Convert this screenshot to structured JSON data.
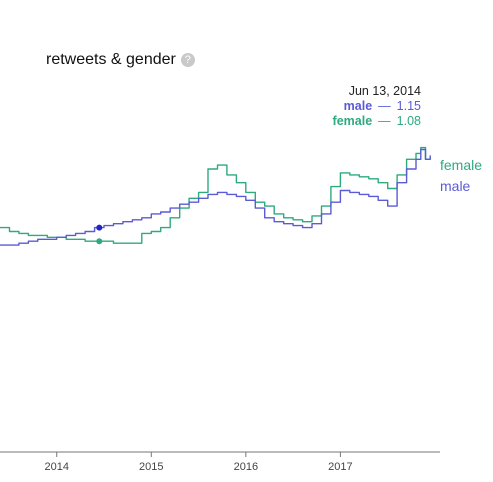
{
  "title": "retweets & gender",
  "help_icon": "question-icon",
  "tooltip": {
    "date": "Jun 13, 2014",
    "rows": [
      {
        "name": "male",
        "value": "1.15",
        "color": "#5b5bd6"
      },
      {
        "name": "female",
        "value": "1.08",
        "color": "#2eaa7e"
      }
    ]
  },
  "chart_data": {
    "type": "line",
    "title": "retweets & gender",
    "xlabel": "",
    "ylabel": "",
    "x_ticks": [
      "2014",
      "2015",
      "2016",
      "2017"
    ],
    "xlim": [
      2013.4,
      2017.99
    ],
    "ylim": [
      0.0,
      1.65
    ],
    "grid": false,
    "legend": "end-of-line labels",
    "series": [
      {
        "name": "male",
        "color": "#5b5bd6",
        "x": [
          2013.4,
          2013.5,
          2013.6,
          2013.7,
          2013.8,
          2013.9,
          2014.0,
          2014.1,
          2014.2,
          2014.3,
          2014.4,
          2014.45,
          2014.5,
          2014.6,
          2014.7,
          2014.8,
          2014.9,
          2015.0,
          2015.1,
          2015.2,
          2015.3,
          2015.4,
          2015.5,
          2015.6,
          2015.7,
          2015.8,
          2015.9,
          2016.0,
          2016.1,
          2016.2,
          2016.3,
          2016.4,
          2016.5,
          2016.6,
          2016.7,
          2016.8,
          2016.9,
          2017.0,
          2017.1,
          2017.2,
          2017.3,
          2017.4,
          2017.5,
          2017.6,
          2017.7,
          2017.8,
          2017.85,
          2017.9,
          2017.95
        ],
        "y": [
          1.06,
          1.06,
          1.07,
          1.08,
          1.09,
          1.09,
          1.1,
          1.11,
          1.12,
          1.13,
          1.15,
          1.15,
          1.16,
          1.17,
          1.18,
          1.19,
          1.2,
          1.22,
          1.23,
          1.25,
          1.27,
          1.28,
          1.3,
          1.32,
          1.33,
          1.32,
          1.31,
          1.29,
          1.25,
          1.2,
          1.18,
          1.17,
          1.16,
          1.15,
          1.17,
          1.22,
          1.28,
          1.34,
          1.33,
          1.32,
          1.31,
          1.29,
          1.26,
          1.38,
          1.45,
          1.5,
          1.55,
          1.5,
          1.52
        ]
      },
      {
        "name": "female",
        "color": "#2eaa7e",
        "x": [
          2013.4,
          2013.5,
          2013.6,
          2013.7,
          2013.8,
          2013.9,
          2014.0,
          2014.1,
          2014.2,
          2014.3,
          2014.4,
          2014.45,
          2014.5,
          2014.6,
          2014.7,
          2014.8,
          2014.9,
          2015.0,
          2015.1,
          2015.2,
          2015.3,
          2015.4,
          2015.5,
          2015.6,
          2015.7,
          2015.8,
          2015.9,
          2016.0,
          2016.1,
          2016.2,
          2016.3,
          2016.4,
          2016.5,
          2016.6,
          2016.7,
          2016.8,
          2016.9,
          2017.0,
          2017.1,
          2017.2,
          2017.3,
          2017.4,
          2017.5,
          2017.6,
          2017.7,
          2017.8,
          2017.85,
          2017.9,
          2017.95
        ],
        "y": [
          1.15,
          1.13,
          1.12,
          1.11,
          1.11,
          1.1,
          1.1,
          1.09,
          1.09,
          1.08,
          1.08,
          1.08,
          1.08,
          1.07,
          1.07,
          1.07,
          1.12,
          1.13,
          1.15,
          1.2,
          1.25,
          1.3,
          1.33,
          1.45,
          1.47,
          1.42,
          1.38,
          1.33,
          1.28,
          1.26,
          1.22,
          1.2,
          1.19,
          1.18,
          1.21,
          1.26,
          1.36,
          1.43,
          1.42,
          1.41,
          1.4,
          1.38,
          1.35,
          1.42,
          1.5,
          1.53,
          1.56,
          1.5,
          1.51
        ]
      }
    ],
    "markers": [
      {
        "series": "male",
        "x": 2014.45,
        "y": 1.15
      },
      {
        "series": "female",
        "x": 2014.45,
        "y": 1.08
      }
    ]
  }
}
